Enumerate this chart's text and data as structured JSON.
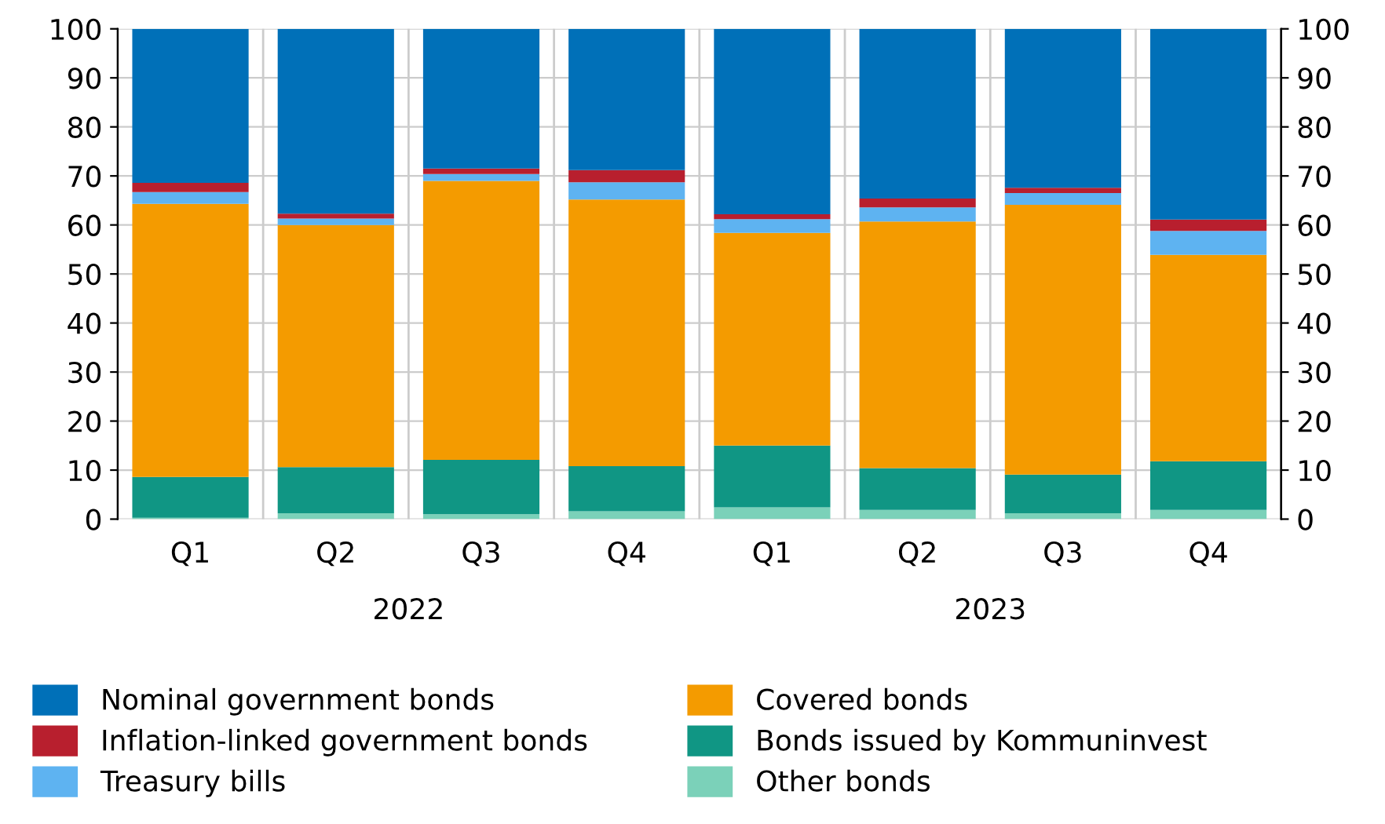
{
  "chart_data": {
    "type": "bar",
    "stacked": true,
    "categories": [
      "Q1",
      "Q2",
      "Q3",
      "Q4",
      "Q1",
      "Q2",
      "Q3",
      "Q4"
    ],
    "annotations": [
      "2022",
      "2023"
    ],
    "series": [
      {
        "name": "Other bonds",
        "color": "#7bd1b9",
        "values": [
          0.3,
          1.2,
          1.0,
          1.6,
          2.4,
          1.9,
          1.2,
          1.9
        ]
      },
      {
        "name": "Bonds issued by Kommuninvest",
        "color": "#109684",
        "values": [
          8.3,
          9.4,
          11.1,
          9.2,
          12.6,
          8.5,
          7.9,
          9.9
        ]
      },
      {
        "name": "Covered bonds",
        "color": "#f49b00",
        "values": [
          55.7,
          49.4,
          56.9,
          54.4,
          43.4,
          50.3,
          55.0,
          42.1
        ]
      },
      {
        "name": "Treasury bills",
        "color": "#5eb3f1",
        "values": [
          2.4,
          1.3,
          1.4,
          3.5,
          2.8,
          2.9,
          2.4,
          4.9
        ]
      },
      {
        "name": "Inflation-linked government bonds",
        "color": "#b81f2e",
        "values": [
          1.9,
          1.0,
          1.1,
          2.5,
          1.0,
          1.8,
          1.1,
          2.3
        ]
      },
      {
        "name": "Nominal government bonds",
        "color": "#0070b8",
        "values": [
          31.4,
          37.7,
          28.5,
          28.8,
          37.8,
          34.6,
          32.4,
          38.9
        ]
      }
    ],
    "ylim": [
      0,
      100
    ],
    "yticks": [
      0,
      10,
      20,
      30,
      40,
      50,
      60,
      70,
      80,
      90,
      100
    ],
    "y2lim": [
      0,
      100
    ],
    "y2ticks": [
      0,
      10,
      20,
      30,
      40,
      50,
      60,
      70,
      80,
      90,
      100
    ],
    "grid": true,
    "legend": "bottom"
  }
}
